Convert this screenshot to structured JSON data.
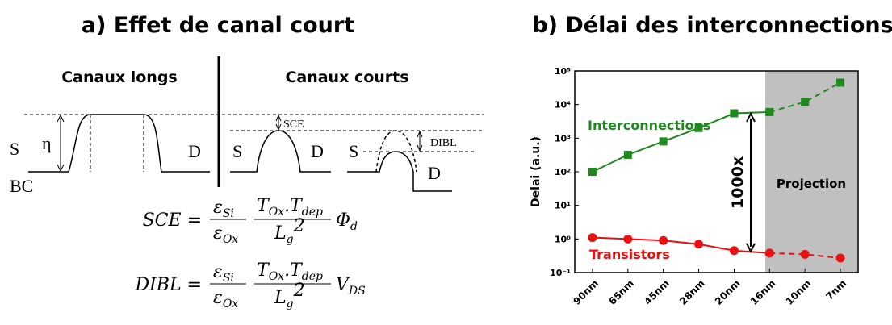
{
  "diagram": {
    "title": "a) Effet de canal court",
    "left_label": "Canaux longs",
    "right_label": "Canaux courts",
    "labels": [
      "S",
      "η",
      "D",
      "BC",
      "S",
      "D",
      "S",
      "D"
    ],
    "sce": "SCE",
    "dibl": "DIBL"
  },
  "equations": [
    {
      "lhs": "SCE =",
      "f1_num": [
        "ε",
        "Si"
      ],
      "f1_den": [
        "ε",
        "Ox"
      ],
      "f2_num": [
        "T",
        "Ox",
        ".T",
        "dep"
      ],
      "f2_den": [
        "L",
        "g",
        "2"
      ],
      "tail": [
        "Φ",
        "d"
      ]
    },
    {
      "lhs": "DIBL =",
      "f1_num": [
        "ε",
        "Si"
      ],
      "f1_den": [
        "ε",
        "Ox"
      ],
      "f2_num": [
        "T",
        "Ox",
        ".T",
        "dep"
      ],
      "f2_den": [
        "L",
        "g",
        "2"
      ],
      "tail": [
        "V",
        "DS"
      ]
    }
  ],
  "chart_data": {
    "type": "line",
    "title": "b) Délai des interconnections",
    "y_label": "Delai (a.u.)",
    "log_y": true,
    "categories": [
      "90nm",
      "65nm",
      "45nm",
      "28nm",
      "20nm",
      "16nm",
      "10nm",
      "7nm"
    ],
    "series": [
      {
        "name": "Interconnections",
        "color": "#1e8a1e",
        "marker": "square",
        "values": [
          100,
          320,
          800,
          2000,
          5500,
          6000,
          12000,
          45000
        ]
      },
      {
        "name": "Transistors",
        "color": "#e81010",
        "marker": "circle",
        "values": [
          1.1,
          1.0,
          0.9,
          0.7,
          0.45,
          0.38,
          0.35,
          0.27
        ]
      }
    ],
    "ylim": [
      0.1,
      100000
    ],
    "yticks": [
      {
        "value": 0.1,
        "label": "10⁻¹"
      },
      {
        "value": 1,
        "label": "10⁰"
      },
      {
        "value": 10,
        "label": "10¹"
      },
      {
        "value": 100,
        "label": "10²"
      },
      {
        "value": 1000,
        "label": "10³"
      },
      {
        "value": 10000,
        "label": "10⁴"
      },
      {
        "value": 100000,
        "label": "10⁵"
      }
    ],
    "annotations": [
      "1000x",
      "Projection"
    ]
  }
}
